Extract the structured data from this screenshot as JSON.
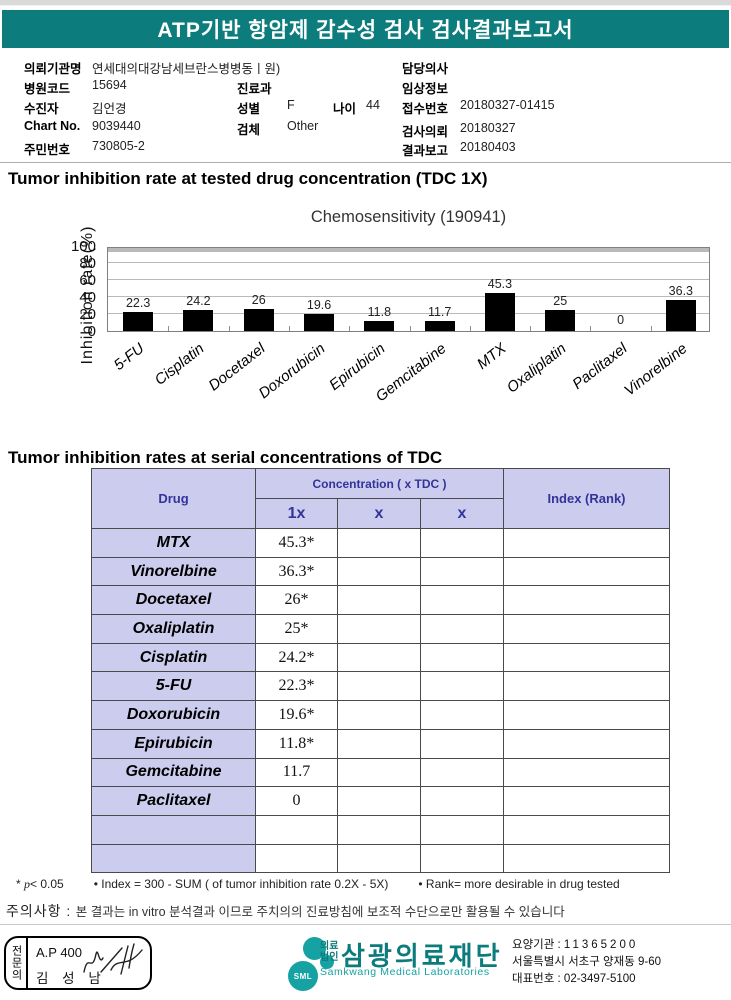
{
  "banner": {
    "title": "ATP기반 항암제 감수성 검사 검사결과보고서"
  },
  "patient": {
    "requesting_org": {
      "label": "의뢰기관명",
      "value": "연세대의대강남세브란스병병동ㅣ원)"
    },
    "hospital_code": {
      "label": "병원코드",
      "value": "15694"
    },
    "patient_name": {
      "label": "수진자",
      "value": "김언경"
    },
    "chart_no": {
      "label": "Chart No.",
      "value": "9039440"
    },
    "resident_id": {
      "label": "주민번호",
      "value": "730805-2"
    },
    "department": {
      "label": "진료과",
      "value": ""
    },
    "sex": {
      "label": "성별",
      "value": "F"
    },
    "age": {
      "label": "나이",
      "value": "44"
    },
    "specimen": {
      "label": "검체",
      "value": "Other"
    },
    "doctor": {
      "label": "담당의사",
      "value": ""
    },
    "clinical_info": {
      "label": "임상정보",
      "value": ""
    },
    "accession_no": {
      "label": "접수번호",
      "value": "20180327-01415"
    },
    "request_date": {
      "label": "검사의뢰",
      "value": "20180327"
    },
    "report_date": {
      "label": "결과보고",
      "value": "20180403"
    }
  },
  "sections": {
    "chart_heading": "Tumor inhibition rate at tested drug concentration (TDC 1X)",
    "table_heading": "Tumor inhibition rates at serial concentrations of TDC"
  },
  "chart_data": {
    "type": "bar",
    "title": "Chemosensitivity (190941)",
    "ylabel": "Inhibition rate(%)",
    "ylim": [
      0,
      100
    ],
    "yticks": [
      0,
      20,
      40,
      60,
      80,
      100
    ],
    "grid": true,
    "legend": "none",
    "bar_color": "#000000",
    "categories": [
      "5-FU",
      "Cisplatin",
      "Docetaxel",
      "Doxorubicin",
      "Epirubicin",
      "Gemcitabine",
      "MTX",
      "Oxaliplatin",
      "Paclitaxel",
      "Vinorelbine"
    ],
    "values": [
      22.3,
      24.2,
      26,
      19.6,
      11.8,
      11.7,
      45.3,
      25,
      0,
      36.3
    ]
  },
  "table": {
    "col_drug": "Drug",
    "col_concentration": "Concentration ( x TDC )",
    "sub_cols": [
      "1x",
      "x",
      "x"
    ],
    "col_index": "Index (Rank)",
    "rows": [
      {
        "drug": "MTX",
        "c1": "45.3*",
        "c2": "",
        "c3": "",
        "index": ""
      },
      {
        "drug": "Vinorelbine",
        "c1": "36.3*",
        "c2": "",
        "c3": "",
        "index": ""
      },
      {
        "drug": "Docetaxel",
        "c1": "26*",
        "c2": "",
        "c3": "",
        "index": ""
      },
      {
        "drug": "Oxaliplatin",
        "c1": "25*",
        "c2": "",
        "c3": "",
        "index": ""
      },
      {
        "drug": "Cisplatin",
        "c1": "24.2*",
        "c2": "",
        "c3": "",
        "index": ""
      },
      {
        "drug": "5-FU",
        "c1": "22.3*",
        "c2": "",
        "c3": "",
        "index": ""
      },
      {
        "drug": "Doxorubicin",
        "c1": "19.6*",
        "c2": "",
        "c3": "",
        "index": ""
      },
      {
        "drug": "Epirubicin",
        "c1": "11.8*",
        "c2": "",
        "c3": "",
        "index": ""
      },
      {
        "drug": "Gemcitabine",
        "c1": "11.7",
        "c2": "",
        "c3": "",
        "index": ""
      },
      {
        "drug": "Paclitaxel",
        "c1": "0",
        "c2": "",
        "c3": "",
        "index": ""
      },
      {
        "drug": "",
        "c1": "",
        "c2": "",
        "c3": "",
        "index": ""
      },
      {
        "drug": "",
        "c1": "",
        "c2": "",
        "c3": "",
        "index": ""
      }
    ]
  },
  "footnotes": {
    "sig_star": "*",
    "sig_p": "p",
    "sig_rest": "< 0.05",
    "index_note": "• Index = 300 - SUM ( of tumor inhibition rate 0.2X  -  5X)",
    "rank_note": "• Rank= more desirable in drug tested"
  },
  "notice": {
    "label": "주의사항 :",
    "text": "본 결과는 in vitro 분석결과 이므로 주치의의 진료방침에 보조적 수단으로만 활용될 수 있습니다"
  },
  "footer": {
    "stamp": {
      "role": "전문의",
      "code": "A.P 400",
      "name": "김 성 남"
    },
    "logo_text": "SML",
    "org_type_line1": "의료",
    "org_type_line2": "법인",
    "org_name": "삼광의료재단",
    "org_name_en": "Samkwang Medical Laboratories",
    "info": [
      {
        "label": "요양기관 :",
        "value": "11365200"
      },
      {
        "label": "",
        "value": "서울특별시 서초구 양재동 9-60"
      },
      {
        "label": "대표번호 :",
        "value": "02-3497-5100"
      }
    ]
  },
  "colors": {
    "banner_teal": "#0d7c7c",
    "logo_teal": "#16a2a2",
    "table_header_bg": "#ccccee",
    "table_header_text": "#333399",
    "bar_color": "#000000"
  }
}
